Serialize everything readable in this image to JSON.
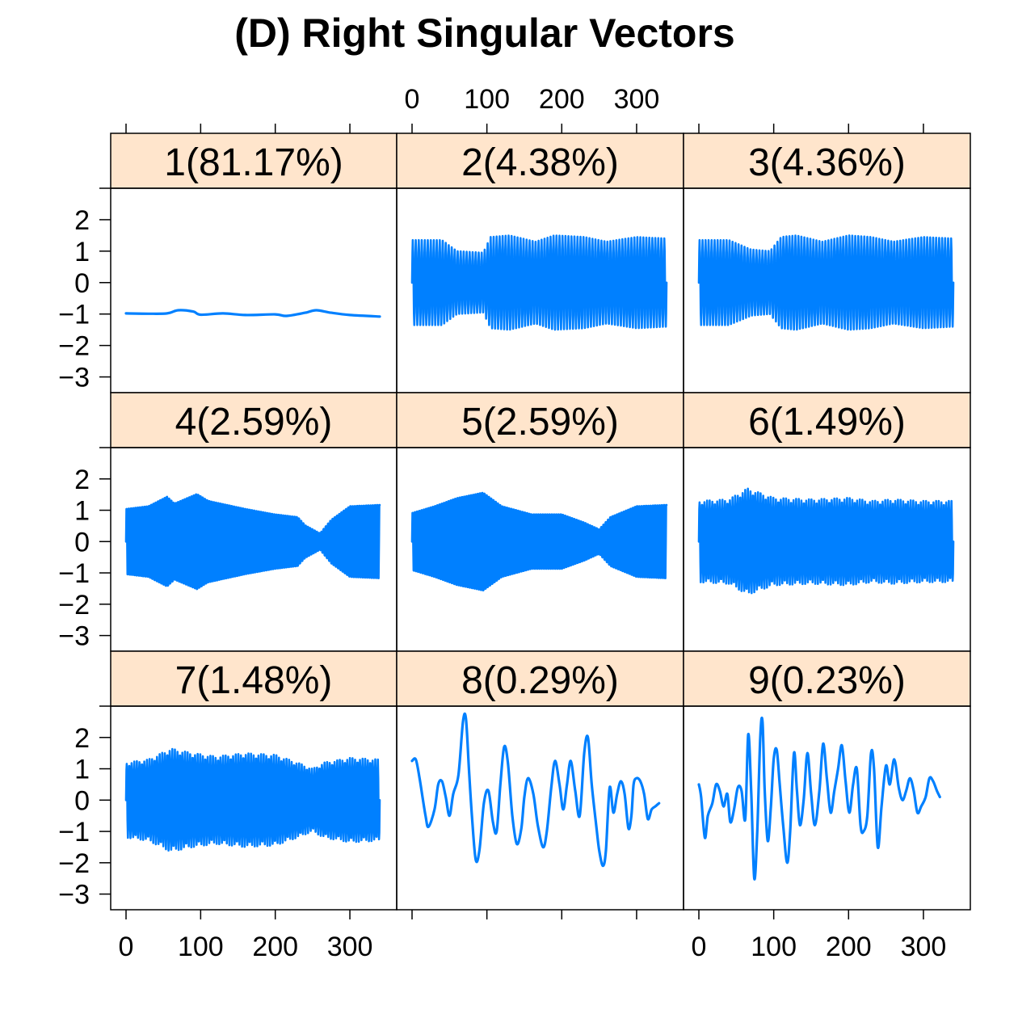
{
  "figure": {
    "title": "(D) Right Singular Vectors"
  },
  "chart_data": {
    "type": "line",
    "layout": "trellis 3x3",
    "line_color": "#0080ff",
    "strip_color": "#ffe5cc",
    "xlim": [
      0,
      340
    ],
    "ylim": [
      -3.5,
      3
    ],
    "x_ticks": [
      0,
      100,
      200,
      300
    ],
    "y_ticks": [
      2,
      1,
      0,
      -1,
      -2,
      -3
    ],
    "x_tick_labels": [
      "0",
      "100",
      "200",
      "300"
    ],
    "y_tick_labels": [
      "2",
      "1",
      "0",
      "−1",
      "−2",
      "−3"
    ],
    "grid": false,
    "panels": [
      {
        "label": "1(81.17%)",
        "style": "smooth",
        "offset": -1.0,
        "envelope": [
          [
            0,
            0.02
          ],
          [
            340,
            0.02
          ]
        ],
        "values": [
          [
            0,
            -0.98
          ],
          [
            30,
            -0.99
          ],
          [
            55,
            -0.98
          ],
          [
            70,
            -0.88
          ],
          [
            90,
            -0.92
          ],
          [
            100,
            -1.02
          ],
          [
            130,
            -0.98
          ],
          [
            160,
            -1.03
          ],
          [
            200,
            -1.01
          ],
          [
            215,
            -1.06
          ],
          [
            240,
            -0.96
          ],
          [
            255,
            -0.88
          ],
          [
            275,
            -0.96
          ],
          [
            300,
            -1.03
          ],
          [
            340,
            -1.08
          ]
        ]
      },
      {
        "label": "2(4.38%)",
        "style": "oscillation",
        "period": 4.0,
        "envelope": [
          [
            0,
            1.35
          ],
          [
            40,
            1.35
          ],
          [
            60,
            1.0
          ],
          [
            95,
            0.95
          ],
          [
            105,
            1.45
          ],
          [
            130,
            1.5
          ],
          [
            165,
            1.3
          ],
          [
            190,
            1.5
          ],
          [
            230,
            1.45
          ],
          [
            260,
            1.3
          ],
          [
            300,
            1.45
          ],
          [
            340,
            1.4
          ]
        ]
      },
      {
        "label": "3(4.36%)",
        "style": "oscillation",
        "period": 4.0,
        "envelope": [
          [
            0,
            1.35
          ],
          [
            40,
            1.35
          ],
          [
            70,
            1.05
          ],
          [
            95,
            1.0
          ],
          [
            110,
            1.45
          ],
          [
            130,
            1.5
          ],
          [
            165,
            1.3
          ],
          [
            200,
            1.5
          ],
          [
            230,
            1.45
          ],
          [
            260,
            1.3
          ],
          [
            300,
            1.45
          ],
          [
            340,
            1.4
          ]
        ]
      },
      {
        "label": "4(2.59%)",
        "style": "oscillation",
        "period": 3.0,
        "envelope": [
          [
            0,
            1.2
          ],
          [
            30,
            1.3
          ],
          [
            55,
            1.65
          ],
          [
            65,
            1.4
          ],
          [
            95,
            1.75
          ],
          [
            110,
            1.5
          ],
          [
            160,
            1.2
          ],
          [
            200,
            1.0
          ],
          [
            230,
            0.9
          ],
          [
            240,
            0.6
          ],
          [
            260,
            0.3
          ],
          [
            275,
            0.8
          ],
          [
            300,
            1.3
          ],
          [
            340,
            1.35
          ]
        ]
      },
      {
        "label": "5(2.59%)",
        "style": "oscillation",
        "period": 3.0,
        "envelope": [
          [
            0,
            1.05
          ],
          [
            30,
            1.3
          ],
          [
            60,
            1.6
          ],
          [
            95,
            1.8
          ],
          [
            120,
            1.3
          ],
          [
            160,
            1.0
          ],
          [
            200,
            1.0
          ],
          [
            230,
            0.7
          ],
          [
            250,
            0.45
          ],
          [
            265,
            0.9
          ],
          [
            300,
            1.3
          ],
          [
            340,
            1.35
          ]
        ]
      },
      {
        "label": "6(1.49%)",
        "style": "oscillation",
        "period": 3.4,
        "envelope": [
          [
            0,
            1.3
          ],
          [
            40,
            1.35
          ],
          [
            65,
            1.7
          ],
          [
            100,
            1.4
          ],
          [
            150,
            1.35
          ],
          [
            200,
            1.4
          ],
          [
            230,
            1.3
          ],
          [
            260,
            1.35
          ],
          [
            300,
            1.3
          ],
          [
            340,
            1.3
          ]
        ]
      },
      {
        "label": "7(1.48%)",
        "style": "oscillation",
        "period": 3.4,
        "envelope": [
          [
            0,
            1.2
          ],
          [
            30,
            1.3
          ],
          [
            60,
            1.65
          ],
          [
            90,
            1.5
          ],
          [
            120,
            1.4
          ],
          [
            160,
            1.5
          ],
          [
            200,
            1.45
          ],
          [
            230,
            1.2
          ],
          [
            250,
            1.0
          ],
          [
            265,
            1.2
          ],
          [
            300,
            1.35
          ],
          [
            340,
            1.3
          ]
        ]
      },
      {
        "label": "8(0.29%)",
        "style": "smooth",
        "values": [
          [
            0,
            1.25
          ],
          [
            5,
            1.3
          ],
          [
            10,
            0.7
          ],
          [
            18,
            -0.5
          ],
          [
            22,
            -0.85
          ],
          [
            30,
            -0.3
          ],
          [
            35,
            0.5
          ],
          [
            40,
            0.6
          ],
          [
            45,
            0.1
          ],
          [
            50,
            -0.5
          ],
          [
            55,
            0.2
          ],
          [
            62,
            0.8
          ],
          [
            68,
            2.5
          ],
          [
            72,
            2.6
          ],
          [
            76,
            1.0
          ],
          [
            80,
            -0.5
          ],
          [
            85,
            -1.9
          ],
          [
            90,
            -1.6
          ],
          [
            96,
            -0.1
          ],
          [
            102,
            0.3
          ],
          [
            108,
            -0.7
          ],
          [
            113,
            -1.0
          ],
          [
            118,
            0.5
          ],
          [
            123,
            1.7
          ],
          [
            128,
            1.2
          ],
          [
            134,
            -0.5
          ],
          [
            140,
            -1.4
          ],
          [
            146,
            -0.9
          ],
          [
            150,
            0.1
          ],
          [
            155,
            0.7
          ],
          [
            162,
            0.2
          ],
          [
            168,
            -0.8
          ],
          [
            175,
            -1.5
          ],
          [
            180,
            -1.0
          ],
          [
            186,
            0.4
          ],
          [
            191,
            1.25
          ],
          [
            197,
            0.5
          ],
          [
            202,
            -0.3
          ],
          [
            207,
            0.5
          ],
          [
            212,
            1.25
          ],
          [
            218,
            0.3
          ],
          [
            224,
            -0.5
          ],
          [
            230,
            1.5
          ],
          [
            235,
            2.0
          ],
          [
            240,
            0.5
          ],
          [
            246,
            -0.8
          ],
          [
            250,
            -1.6
          ],
          [
            255,
            -2.1
          ],
          [
            259,
            -1.6
          ],
          [
            264,
            0.4
          ],
          [
            269,
            -0.4
          ],
          [
            274,
            0.2
          ],
          [
            279,
            0.6
          ],
          [
            284,
            0.2
          ],
          [
            289,
            -0.9
          ],
          [
            293,
            -0.5
          ],
          [
            296,
            0.5
          ],
          [
            300,
            0.7
          ],
          [
            305,
            0.6
          ],
          [
            310,
            0.2
          ],
          [
            315,
            -0.6
          ],
          [
            320,
            -0.3
          ],
          [
            325,
            -0.2
          ],
          [
            330,
            -0.1
          ]
        ]
      },
      {
        "label": "9(0.23%)",
        "style": "smooth",
        "values": [
          [
            0,
            0.5
          ],
          [
            3,
            0.1
          ],
          [
            8,
            -1.2
          ],
          [
            12,
            -0.5
          ],
          [
            18,
            -0.1
          ],
          [
            23,
            0.5
          ],
          [
            28,
            0.3
          ],
          [
            33,
            -0.2
          ],
          [
            38,
            0.2
          ],
          [
            42,
            -0.7
          ],
          [
            47,
            -0.3
          ],
          [
            52,
            0.4
          ],
          [
            57,
            0.3
          ],
          [
            62,
            -0.6
          ],
          [
            66,
            2.1
          ],
          [
            70,
            0.2
          ],
          [
            74,
            -2.5
          ],
          [
            78,
            -1.0
          ],
          [
            82,
            2.0
          ],
          [
            85,
            2.5
          ],
          [
            88,
            0.3
          ],
          [
            92,
            -1.3
          ],
          [
            96,
            -0.3
          ],
          [
            100,
            1.3
          ],
          [
            104,
            1.6
          ],
          [
            108,
            0.5
          ],
          [
            113,
            -0.9
          ],
          [
            118,
            -2.0
          ],
          [
            122,
            -1.0
          ],
          [
            127,
            1.5
          ],
          [
            131,
            0.3
          ],
          [
            135,
            -0.8
          ],
          [
            140,
            0.0
          ],
          [
            145,
            1.5
          ],
          [
            150,
            0.2
          ],
          [
            155,
            -0.8
          ],
          [
            161,
            0.3
          ],
          [
            166,
            1.8
          ],
          [
            171,
            0.7
          ],
          [
            176,
            -0.4
          ],
          [
            181,
            0.3
          ],
          [
            186,
            1.0
          ],
          [
            191,
            1.75
          ],
          [
            196,
            0.6
          ],
          [
            201,
            -0.4
          ],
          [
            206,
            0.5
          ],
          [
            211,
            1.0
          ],
          [
            216,
            -0.8
          ],
          [
            220,
            -1.0
          ],
          [
            225,
            -0.5
          ],
          [
            230,
            1.5
          ],
          [
            234,
            1.0
          ],
          [
            239,
            -1.5
          ],
          [
            244,
            -0.2
          ],
          [
            250,
            1.1
          ],
          [
            255,
            0.5
          ],
          [
            261,
            1.3
          ],
          [
            267,
            0.4
          ],
          [
            272,
            0.0
          ],
          [
            277,
            0.3
          ],
          [
            282,
            0.7
          ],
          [
            287,
            0.3
          ],
          [
            292,
            -0.4
          ],
          [
            297,
            -0.2
          ],
          [
            303,
            0.1
          ],
          [
            308,
            0.7
          ],
          [
            313,
            0.6
          ],
          [
            318,
            0.3
          ],
          [
            322,
            0.1
          ]
        ]
      }
    ]
  }
}
